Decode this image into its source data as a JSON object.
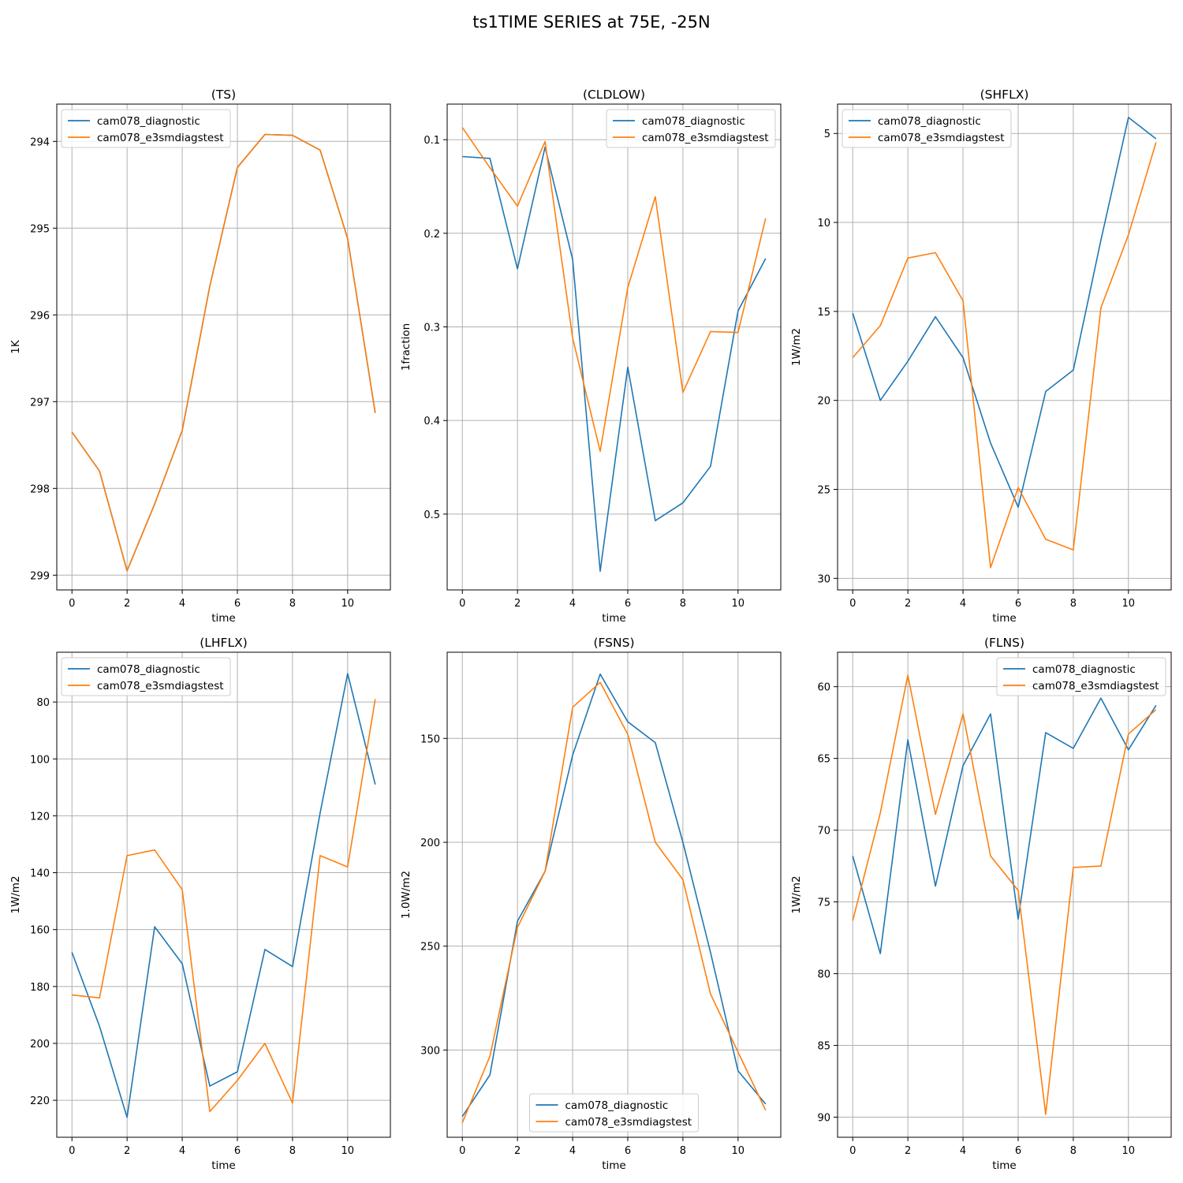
{
  "figure_title": "ts1TIME SERIES at 75E, -25N",
  "series_names": [
    "cam078_diagnostic",
    "cam078_e3smdiagstest"
  ],
  "colors": {
    "diagnostic": "#1f77b4",
    "e3smdiagstest": "#ff7f0e",
    "grid": "#b0b0b0"
  },
  "chart_data": [
    {
      "type": "line",
      "title": "(TS)",
      "xlabel": "time",
      "ylabel": "1K",
      "x": [
        0,
        1,
        2,
        3,
        4,
        5,
        6,
        7,
        8,
        9,
        10,
        11
      ],
      "xlim": [
        -0.55,
        11.55
      ],
      "ylim": [
        299.17,
        293.57
      ],
      "y_inverted": true,
      "xticks": [
        0,
        2,
        4,
        6,
        8,
        10
      ],
      "yticks": [
        294,
        295,
        296,
        297,
        298,
        299
      ],
      "grid": true,
      "legend_position": "upper-left",
      "series": [
        {
          "name": "cam078_diagnostic",
          "color": "#1f77b4",
          "values": [
            297.35,
            297.8,
            298.95,
            298.18,
            297.33,
            295.67,
            294.3,
            293.92,
            293.93,
            294.1,
            295.12,
            297.13
          ]
        },
        {
          "name": "cam078_e3smdiagstest",
          "color": "#ff7f0e",
          "values": [
            297.35,
            297.8,
            298.95,
            298.18,
            297.33,
            295.67,
            294.3,
            293.92,
            293.93,
            294.1,
            295.12,
            297.13
          ]
        }
      ]
    },
    {
      "type": "line",
      "title": "(CLDLOW)",
      "xlabel": "time",
      "ylabel": "1fraction",
      "x": [
        0,
        1,
        2,
        3,
        4,
        5,
        6,
        7,
        8,
        9,
        10,
        11
      ],
      "xlim": [
        -0.55,
        11.55
      ],
      "ylim": [
        0.581,
        0.062
      ],
      "y_inverted": true,
      "xticks": [
        0,
        2,
        4,
        6,
        8,
        10
      ],
      "yticks": [
        0.1,
        0.2,
        0.3,
        0.4,
        0.5
      ],
      "grid": true,
      "legend_position": "upper-right",
      "series": [
        {
          "name": "cam078_diagnostic",
          "color": "#1f77b4",
          "values": [
            0.118,
            0.12,
            0.238,
            0.108,
            0.228,
            0.561,
            0.343,
            0.507,
            0.488,
            0.449,
            0.283,
            0.227
          ]
        },
        {
          "name": "cam078_e3smdiagstest",
          "color": "#ff7f0e",
          "values": [
            0.087,
            0.13,
            0.171,
            0.102,
            0.312,
            0.433,
            0.258,
            0.161,
            0.37,
            0.305,
            0.306,
            0.184
          ]
        }
      ]
    },
    {
      "type": "line",
      "title": "(SHFLX)",
      "xlabel": "time",
      "ylabel": "1W/m2",
      "x": [
        0,
        1,
        2,
        3,
        4,
        5,
        6,
        7,
        8,
        9,
        10,
        11
      ],
      "xlim": [
        -0.55,
        11.55
      ],
      "ylim": [
        30.65,
        3.35
      ],
      "y_inverted": true,
      "xticks": [
        0,
        2,
        4,
        6,
        8,
        10
      ],
      "yticks": [
        5,
        10,
        15,
        20,
        25,
        30
      ],
      "grid": true,
      "legend_position": "upper-left",
      "series": [
        {
          "name": "cam078_diagnostic",
          "color": "#1f77b4",
          "values": [
            15.1,
            20.0,
            17.8,
            15.3,
            17.6,
            22.4,
            26.0,
            19.5,
            18.3,
            11.0,
            4.1,
            5.3
          ]
        },
        {
          "name": "cam078_e3smdiagstest",
          "color": "#ff7f0e",
          "values": [
            17.6,
            15.8,
            12.0,
            11.7,
            14.4,
            29.4,
            24.9,
            27.8,
            28.4,
            14.8,
            10.7,
            5.5
          ]
        }
      ]
    },
    {
      "type": "line",
      "title": "(LHFLX)",
      "xlabel": "time",
      "ylabel": "1W/m2",
      "x": [
        0,
        1,
        2,
        3,
        4,
        5,
        6,
        7,
        8,
        9,
        10,
        11
      ],
      "xlim": [
        -0.55,
        11.55
      ],
      "ylim": [
        233.0,
        62.5
      ],
      "y_inverted": true,
      "xticks": [
        0,
        2,
        4,
        6,
        8,
        10
      ],
      "yticks": [
        80,
        100,
        120,
        140,
        160,
        180,
        200,
        220
      ],
      "grid": true,
      "legend_position": "upper-left",
      "series": [
        {
          "name": "cam078_diagnostic",
          "color": "#1f77b4",
          "values": [
            168,
            194,
            226,
            159,
            172,
            215,
            210,
            167,
            173,
            119,
            70,
            109
          ]
        },
        {
          "name": "cam078_e3smdiagstest",
          "color": "#ff7f0e",
          "values": [
            183,
            184,
            134,
            132,
            146,
            224,
            213,
            200,
            221,
            134,
            138,
            79
          ]
        }
      ]
    },
    {
      "type": "line",
      "title": "(FSNS)",
      "xlabel": "time",
      "ylabel": "1.0W/m2",
      "x": [
        0,
        1,
        2,
        3,
        4,
        5,
        6,
        7,
        8,
        9,
        10,
        11
      ],
      "xlim": [
        -0.55,
        11.55
      ],
      "ylim": [
        342.0,
        108.5
      ],
      "y_inverted": true,
      "xticks": [
        0,
        2,
        4,
        6,
        8,
        10
      ],
      "yticks": [
        150,
        200,
        250,
        300
      ],
      "grid": true,
      "legend_position": "lower-center",
      "series": [
        {
          "name": "cam078_diagnostic",
          "color": "#1f77b4",
          "values": [
            332,
            312,
            238,
            214,
            158,
            119,
            142,
            152,
            200,
            253,
            310,
            326
          ]
        },
        {
          "name": "cam078_e3smdiagstest",
          "color": "#ff7f0e",
          "values": [
            335,
            303,
            241,
            214,
            135,
            123,
            148,
            200,
            218,
            273,
            301,
            329
          ]
        }
      ]
    },
    {
      "type": "line",
      "title": "(FLNS)",
      "xlabel": "time",
      "ylabel": "1W/m2",
      "x": [
        0,
        1,
        2,
        3,
        4,
        5,
        6,
        7,
        8,
        9,
        10,
        11
      ],
      "xlim": [
        -0.55,
        11.55
      ],
      "ylim": [
        91.4,
        57.6
      ],
      "y_inverted": true,
      "xticks": [
        0,
        2,
        4,
        6,
        8,
        10
      ],
      "yticks": [
        60,
        65,
        70,
        75,
        80,
        85,
        90
      ],
      "grid": true,
      "legend_position": "upper-right",
      "series": [
        {
          "name": "cam078_diagnostic",
          "color": "#1f77b4",
          "values": [
            71.8,
            78.6,
            63.7,
            73.9,
            65.5,
            61.9,
            76.2,
            63.2,
            64.3,
            60.8,
            64.4,
            61.3
          ]
        },
        {
          "name": "cam078_e3smdiagstest",
          "color": "#ff7f0e",
          "values": [
            76.3,
            68.8,
            59.2,
            68.9,
            61.9,
            71.8,
            74.2,
            89.8,
            72.6,
            72.5,
            63.3,
            61.6
          ]
        }
      ]
    }
  ]
}
